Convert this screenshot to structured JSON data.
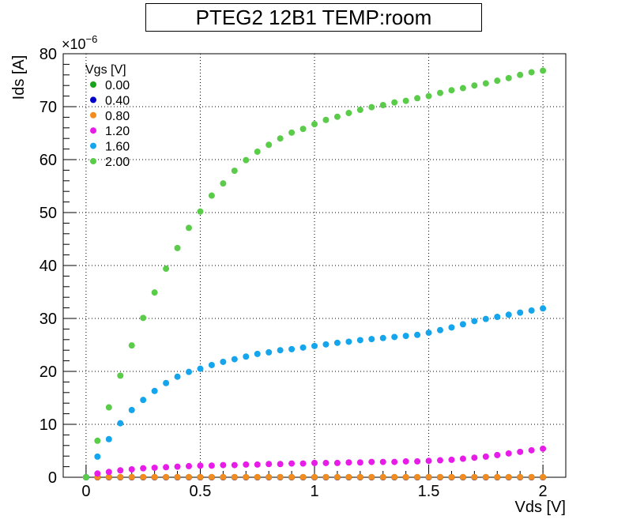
{
  "chart_data": {
    "type": "scatter",
    "title": "PTEG2 12B1 TEMP:room",
    "xlabel": "Vds [V]",
    "ylabel": "Ids [A]",
    "y_exponent": "×10",
    "y_exponent_power": "−6",
    "xlim": [
      -0.1,
      2.1
    ],
    "ylim": [
      0,
      80
    ],
    "x_ticks": [
      "0",
      "0.5",
      "1",
      "1.5",
      "2"
    ],
    "x_tick_values": [
      0,
      0.5,
      1,
      1.5,
      2
    ],
    "y_ticks": [
      "0",
      "10",
      "20",
      "30",
      "40",
      "50",
      "60",
      "70",
      "80"
    ],
    "y_tick_values": [
      0,
      10,
      20,
      30,
      40,
      50,
      60,
      70,
      80
    ],
    "grid": true,
    "legend_title": "Vgs [V]",
    "legend_position": "top-left",
    "x": [
      0,
      0.05,
      0.1,
      0.15,
      0.2,
      0.25,
      0.3,
      0.35,
      0.4,
      0.45,
      0.5,
      0.55,
      0.6,
      0.65,
      0.7,
      0.75,
      0.8,
      0.85,
      0.9,
      0.95,
      1.0,
      1.05,
      1.1,
      1.15,
      1.2,
      1.25,
      1.3,
      1.35,
      1.4,
      1.45,
      1.5,
      1.55,
      1.6,
      1.65,
      1.7,
      1.75,
      1.8,
      1.85,
      1.9,
      1.95,
      2.0
    ],
    "series": [
      {
        "name": "0.00",
        "color": "#1aa31a",
        "values": [
          0,
          0,
          0,
          0,
          0,
          0,
          0,
          0,
          0,
          0,
          0,
          0,
          0,
          0,
          0,
          0,
          0,
          0,
          0,
          0,
          0,
          0,
          0,
          0,
          0,
          0,
          0,
          0,
          0,
          0,
          0,
          0,
          0,
          0,
          0,
          0,
          0,
          0,
          0,
          0,
          0
        ]
      },
      {
        "name": "0.40",
        "color": "#0000cc",
        "values": [
          0,
          0,
          0,
          0,
          0,
          0,
          0,
          0,
          0,
          0,
          0,
          0,
          0,
          0,
          0,
          0,
          0,
          0,
          0,
          0,
          0,
          0,
          0,
          0,
          0,
          0,
          0,
          0,
          0,
          0,
          0,
          0,
          0,
          0,
          0,
          0,
          0,
          0,
          0,
          0,
          0
        ]
      },
      {
        "name": "0.80",
        "color": "#f28c1e",
        "values": [
          0,
          0.02,
          0.03,
          0.03,
          0.03,
          0.03,
          0.03,
          0.03,
          0.03,
          0.03,
          0.03,
          0.03,
          0.03,
          0.03,
          0.03,
          0.03,
          0.03,
          0.03,
          0.03,
          0.03,
          0.03,
          0.03,
          0.03,
          0.03,
          0.03,
          0.03,
          0.03,
          0.03,
          0.03,
          0.03,
          0.03,
          0.03,
          0.03,
          0.03,
          0.03,
          0.03,
          0.03,
          0.03,
          0.03,
          0.03,
          0.03
        ]
      },
      {
        "name": "1.20",
        "color": "#e81ce8",
        "values": [
          0,
          0.7,
          1.0,
          1.3,
          1.5,
          1.7,
          1.8,
          1.9,
          2.0,
          2.1,
          2.2,
          2.2,
          2.3,
          2.3,
          2.4,
          2.4,
          2.5,
          2.5,
          2.6,
          2.6,
          2.7,
          2.7,
          2.7,
          2.8,
          2.8,
          2.9,
          2.9,
          2.9,
          3.0,
          3.0,
          3.1,
          3.2,
          3.3,
          3.5,
          3.7,
          3.9,
          4.2,
          4.5,
          4.8,
          5.1,
          5.4
        ]
      },
      {
        "name": "1.60",
        "color": "#14a5ec",
        "values": [
          0,
          3.9,
          7.2,
          10.2,
          12.7,
          14.6,
          16.3,
          17.8,
          19.0,
          19.9,
          20.5,
          21.2,
          21.8,
          22.3,
          22.8,
          23.3,
          23.6,
          24.0,
          24.2,
          24.5,
          24.8,
          25.1,
          25.4,
          25.6,
          25.9,
          26.1,
          26.3,
          26.5,
          26.7,
          26.9,
          27.3,
          27.8,
          28.3,
          28.9,
          29.5,
          29.9,
          30.3,
          30.7,
          31.1,
          31.5,
          31.9
        ]
      },
      {
        "name": "2.00",
        "color": "#5acc4a",
        "values": [
          0,
          6.9,
          13.2,
          19.2,
          24.9,
          30.1,
          34.9,
          39.4,
          43.3,
          47.1,
          50.2,
          53.2,
          55.5,
          57.9,
          59.9,
          61.5,
          62.8,
          64.0,
          65.1,
          65.8,
          66.7,
          67.5,
          68.1,
          68.8,
          69.4,
          69.9,
          70.3,
          70.8,
          71.1,
          71.6,
          72.0,
          72.6,
          73.1,
          73.5,
          74.0,
          74.4,
          74.9,
          75.4,
          76.0,
          76.5,
          76.8
        ]
      }
    ]
  }
}
